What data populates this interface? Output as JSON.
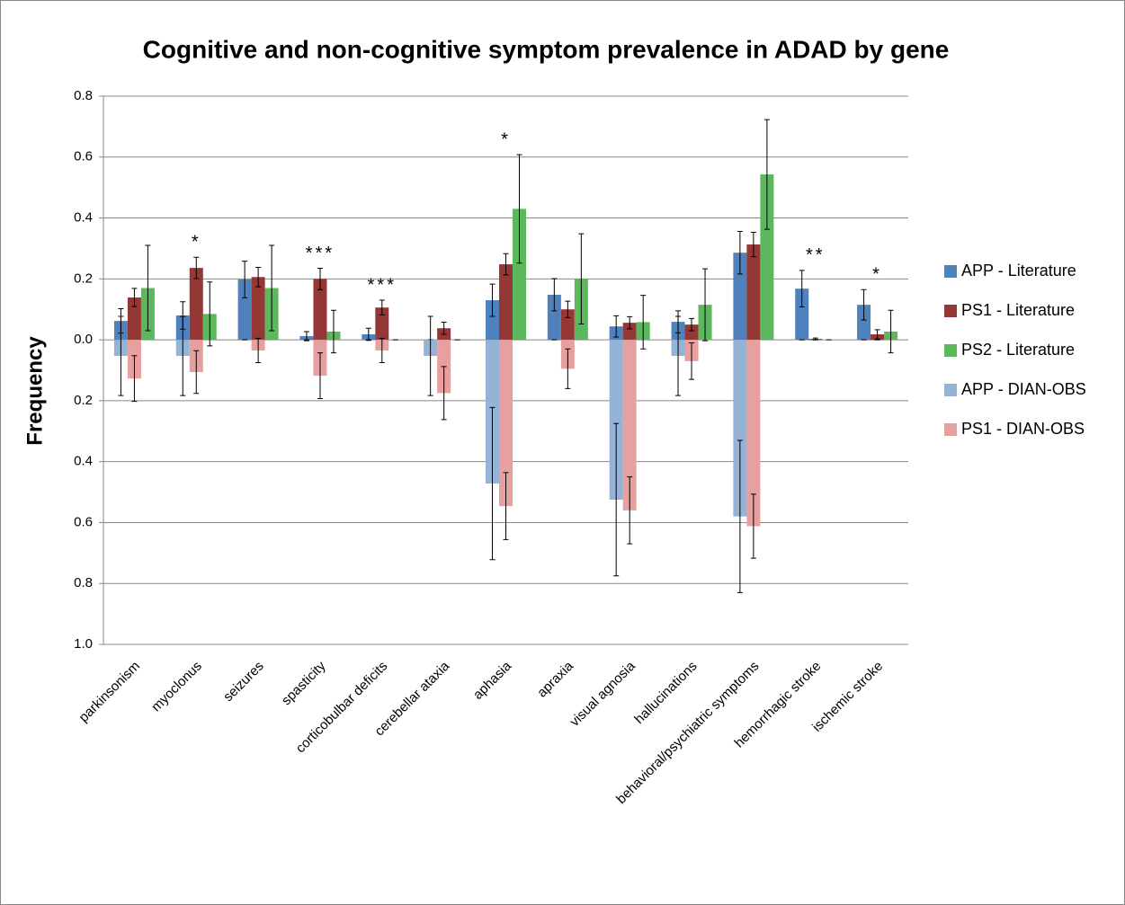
{
  "chart_data": {
    "type": "bar",
    "title": "Cognitive and non-cognitive symptom prevalence in ADAD by gene",
    "ylabel": "Frequency",
    "categories": [
      "parkinsonism",
      "myoclonus",
      "seizures",
      "spasticity",
      "corticobulbar deficits",
      "cerebellar ataxia",
      "aphasia",
      "apraxia",
      "visual agnosia",
      "hallucinations",
      "behavioral/psychiatric symptoms",
      "hemorrhagic stroke",
      "ischemic stroke"
    ],
    "series": [
      {
        "name": "APP - Literature",
        "color": "#4f81bd",
        "values": [
          0.062,
          0.08,
          0.198,
          0.012,
          0.018,
          0,
          0.13,
          0.148,
          0.044,
          0.059,
          0.286,
          0.168,
          0.115
        ],
        "errors": [
          0.04,
          0.045,
          0.06,
          0.015,
          0.02,
          0,
          0.053,
          0.053,
          0.035,
          0.036,
          0.07,
          0.06,
          0.05
        ]
      },
      {
        "name": "PS1 - Literature",
        "color": "#953735",
        "values": [
          0.139,
          0.236,
          0.206,
          0.2,
          0.106,
          0.038,
          0.248,
          0.1,
          0.056,
          0.05,
          0.313,
          0.003,
          0.018
        ],
        "errors": [
          0.03,
          0.035,
          0.032,
          0.035,
          0.024,
          0.02,
          0.035,
          0.027,
          0.02,
          0.02,
          0.04,
          0.003,
          0.015
        ]
      },
      {
        "name": "PS2 - Literature",
        "color": "#5cb85c",
        "values": [
          0.17,
          0.085,
          0.17,
          0.027,
          0,
          0,
          0.43,
          0.2,
          0.058,
          0.115,
          0.543,
          0,
          0.027
        ],
        "errors": [
          0.14,
          0.105,
          0.14,
          0.07,
          0,
          0,
          0.178,
          0.148,
          0.088,
          0.118,
          0.18,
          0,
          0.07
        ]
      },
      {
        "name": "APP - DIAN-OBS",
        "color": "#95b3d7",
        "values": [
          -0.053,
          -0.053,
          0,
          0,
          0,
          -0.053,
          -0.472,
          0,
          -0.525,
          -0.053,
          -0.58,
          0,
          0
        ],
        "errors": [
          0.13,
          0.13,
          0,
          0,
          0,
          0.13,
          0.25,
          0,
          0.25,
          0.13,
          0.25,
          0,
          0
        ]
      },
      {
        "name": "PS1 - DIAN-OBS",
        "color": "#e6a0a0",
        "values": [
          -0.127,
          -0.106,
          -0.035,
          -0.118,
          -0.035,
          -0.175,
          -0.546,
          -0.095,
          -0.56,
          -0.07,
          -0.612,
          0,
          0
        ],
        "errors": [
          0.075,
          0.07,
          0.04,
          0.075,
          0.04,
          0.087,
          0.11,
          0.065,
          0.11,
          0.06,
          0.105,
          0,
          0
        ]
      }
    ],
    "annotations": [
      {
        "category": "myoclonus",
        "text": "*"
      },
      {
        "category": "spasticity",
        "text": "***"
      },
      {
        "category": "corticobulbar deficits",
        "text": "***"
      },
      {
        "category": "aphasia",
        "text": "*"
      },
      {
        "category": "hemorrhagic stroke",
        "text": "**"
      },
      {
        "category": "ischemic stroke",
        "text": "*"
      }
    ],
    "ylim": [
      -1.0,
      0.8
    ],
    "yticks": [
      0.8,
      0.6,
      0.4,
      0.2,
      {
        "value": 0,
        "label": "0.0"
      },
      {
        "value": -0.2,
        "label": "0.2"
      },
      {
        "value": -0.4,
        "label": "0.4"
      },
      {
        "value": -0.6,
        "label": "0.6"
      },
      {
        "value": -0.8,
        "label": "0.8"
      },
      {
        "value": -1.0,
        "label": "1.0"
      }
    ],
    "grid": true,
    "legend": "right"
  }
}
